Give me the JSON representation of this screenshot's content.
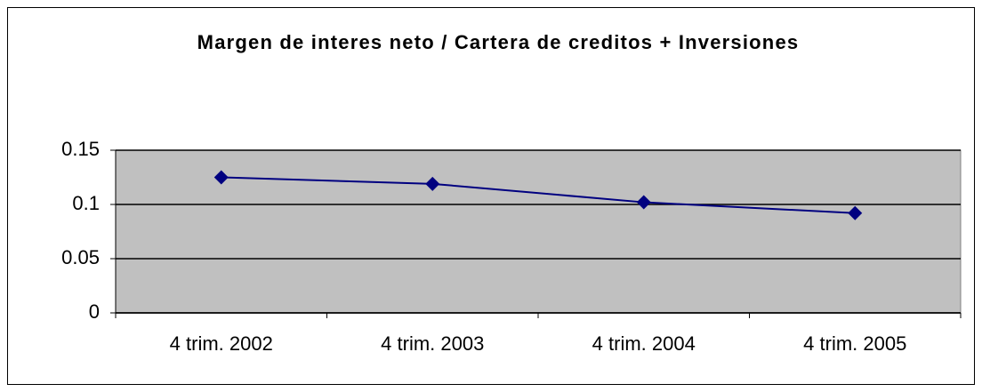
{
  "chart_data": {
    "type": "line",
    "title": "Margen de interes neto / Cartera de creditos + Inversiones",
    "categories": [
      "4 trim. 2002",
      "4 trim. 2003",
      "4 trim. 2004",
      "4 trim. 2005"
    ],
    "series": [
      {
        "color": "#000080",
        "values": [
          0.125,
          0.119,
          0.102,
          0.092
        ]
      }
    ],
    "ylim": [
      0,
      0.15
    ],
    "yticks": [
      0,
      0.05,
      0.1,
      0.15
    ],
    "grid": true
  }
}
